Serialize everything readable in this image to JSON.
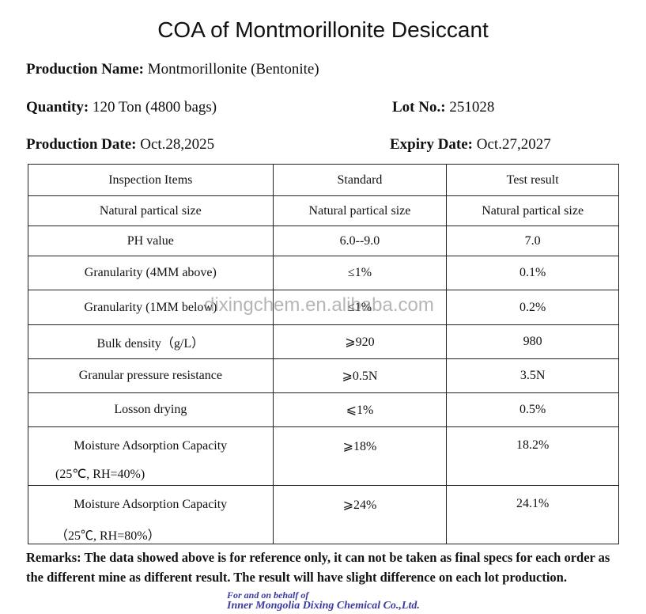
{
  "title": "COA of Montmorillonite Desiccant",
  "fields": [
    {
      "label": "Production Name:",
      "value": "Montmorillonite (Bentonite)"
    },
    {
      "label": "Quantity:",
      "value": "120 Ton (4800 bags)"
    },
    {
      "label": "Lot No.:",
      "value": "251028"
    },
    {
      "label": "Production Date:",
      "value": "Oct.28,2025"
    },
    {
      "label": "Expiry Date:",
      "value": "Oct.27,2027"
    }
  ],
  "table": {
    "header": [
      "Inspection Items",
      "Standard",
      "Test result"
    ],
    "rows": [
      [
        "Natural partical size",
        "Natural partical size",
        "Natural partical size"
      ],
      [
        "PH value",
        "6.0--9.0",
        "7.0"
      ],
      [
        "Granularity (4MM above)",
        "≤1%",
        "0.1%"
      ],
      [
        "Granularity (1MM below)",
        "≤1%",
        "0.2%"
      ],
      [
        "Bulk density（g/L）",
        "⩾920",
        "980"
      ],
      [
        "Granular pressure resistance",
        "⩾0.5N",
        "3.5N"
      ],
      [
        "Losson drying",
        "⩽1%",
        "0.5%"
      ],
      [
        "Moisture Adsorption Capacity",
        "⩾18%",
        "18.2%"
      ],
      [
        "Moisture Adsorption Capacity",
        "⩾24%",
        "24.1%"
      ]
    ],
    "notes": [
      "(25℃, RH=40%)",
      "（25℃, RH=80%）"
    ]
  },
  "watermark": "dixingchem.en.alibaba.com",
  "remarks": {
    "label": "Remarks:",
    "text": "The data showed above is for reference only, it can not be taken as final specs for each order as the different mine as different result. The result will have slight difference on each lot production."
  },
  "footer": [
    "For and on behalf of",
    "Inner Mongolia Dixing Chemical Co.,Ltd."
  ]
}
